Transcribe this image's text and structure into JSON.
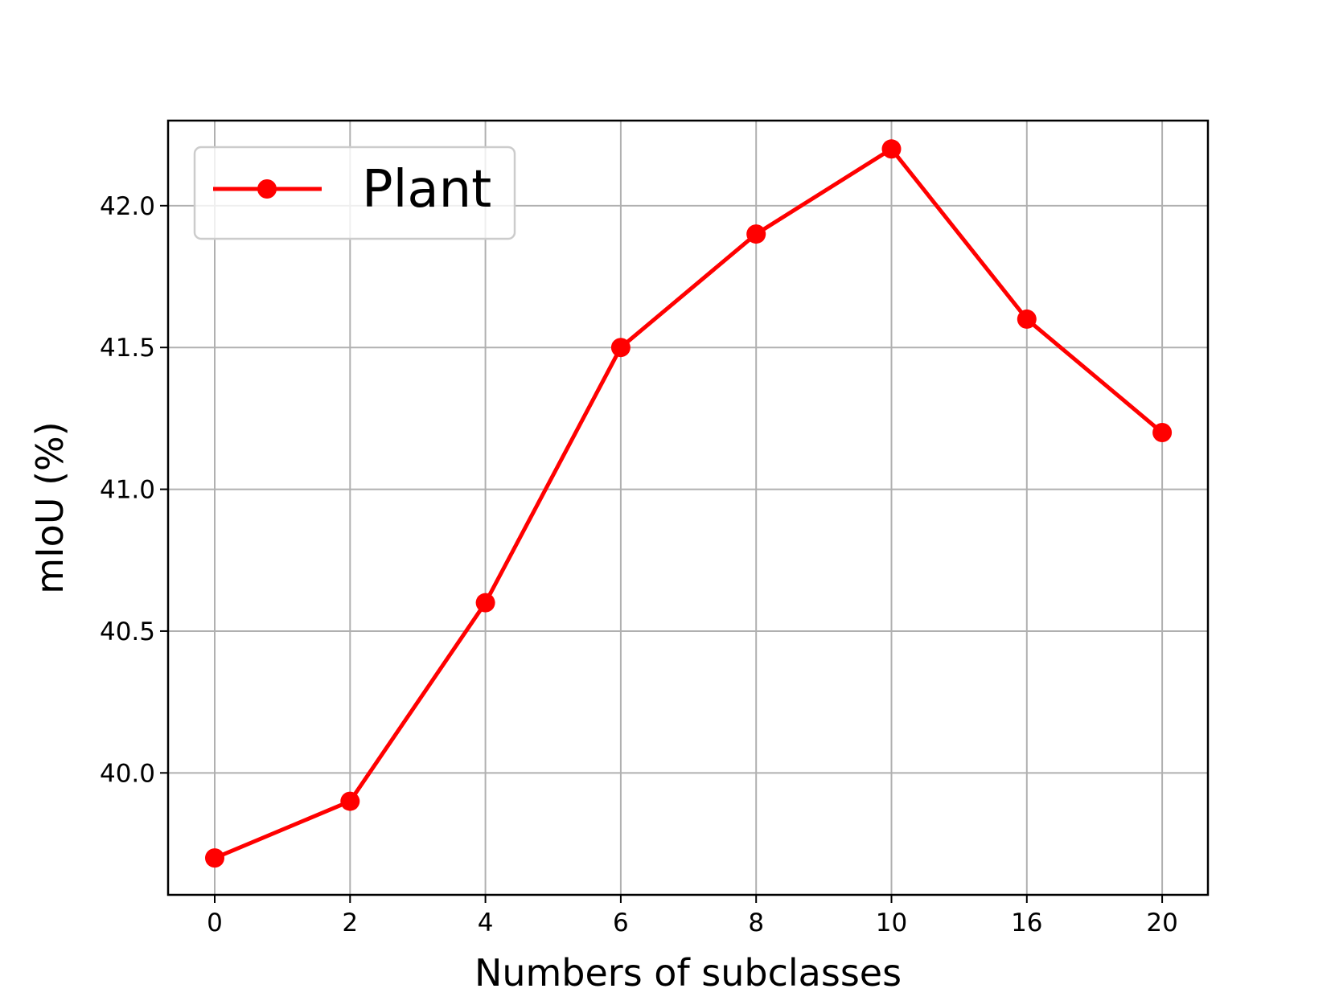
{
  "chart_data": {
    "type": "line",
    "title": "",
    "xlabel": "Numbers of subclasses",
    "ylabel": "mIoU (%)",
    "categories": [
      "0",
      "2",
      "4",
      "6",
      "8",
      "10",
      "16",
      "20"
    ],
    "series": [
      {
        "name": "Plant",
        "color": "#ff0000",
        "marker": "circle",
        "values": [
          39.7,
          39.9,
          40.6,
          41.5,
          41.9,
          42.2,
          41.6,
          41.2
        ]
      }
    ],
    "yticks": [
      "40.0",
      "40.5",
      "41.0",
      "41.5",
      "42.0"
    ],
    "ylim": [
      39.57,
      42.3
    ],
    "grid": true,
    "legend": "upper-left"
  }
}
